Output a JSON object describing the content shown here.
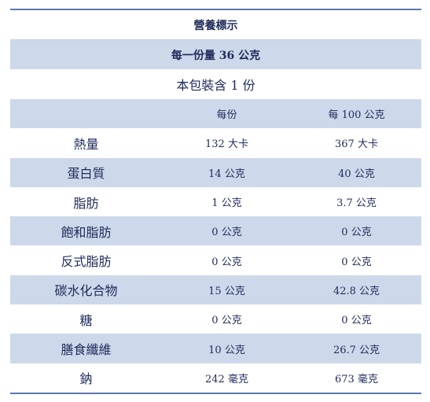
{
  "title": "營養標示",
  "serving_size": "每一份量 36 公克",
  "package_servings": "本包裝含 1 份",
  "columns": {
    "per_serving": "每份",
    "per_100g": "每 100 公克"
  },
  "rows": [
    {
      "nutrient": "熱量",
      "per_serving": "132 大卡",
      "per_100g": "367 大卡"
    },
    {
      "nutrient": "蛋白質",
      "per_serving": "14 公克",
      "per_100g": "40 公克"
    },
    {
      "nutrient": "脂肪",
      "per_serving": "1 公克",
      "per_100g": "3.7 公克"
    },
    {
      "nutrient": "飽和脂肪",
      "per_serving": "0 公克",
      "per_100g": "0 公克"
    },
    {
      "nutrient": "反式脂肪",
      "per_serving": "0 公克",
      "per_100g": "0 公克"
    },
    {
      "nutrient": "碳水化合物",
      "per_serving": "15 公克",
      "per_100g": "42.8 公克"
    },
    {
      "nutrient": "糖",
      "per_serving": "0 公克",
      "per_100g": "0 公克"
    },
    {
      "nutrient": "膳食纖維",
      "per_serving": "10 公克",
      "per_100g": "26.7 公克"
    },
    {
      "nutrient": "鈉",
      "per_serving": "242 毫克",
      "per_100g": "673 毫克"
    }
  ],
  "colors": {
    "accent_line": "#5b78a8",
    "band": "#cdd8ea",
    "text": "#1f2b5a"
  }
}
